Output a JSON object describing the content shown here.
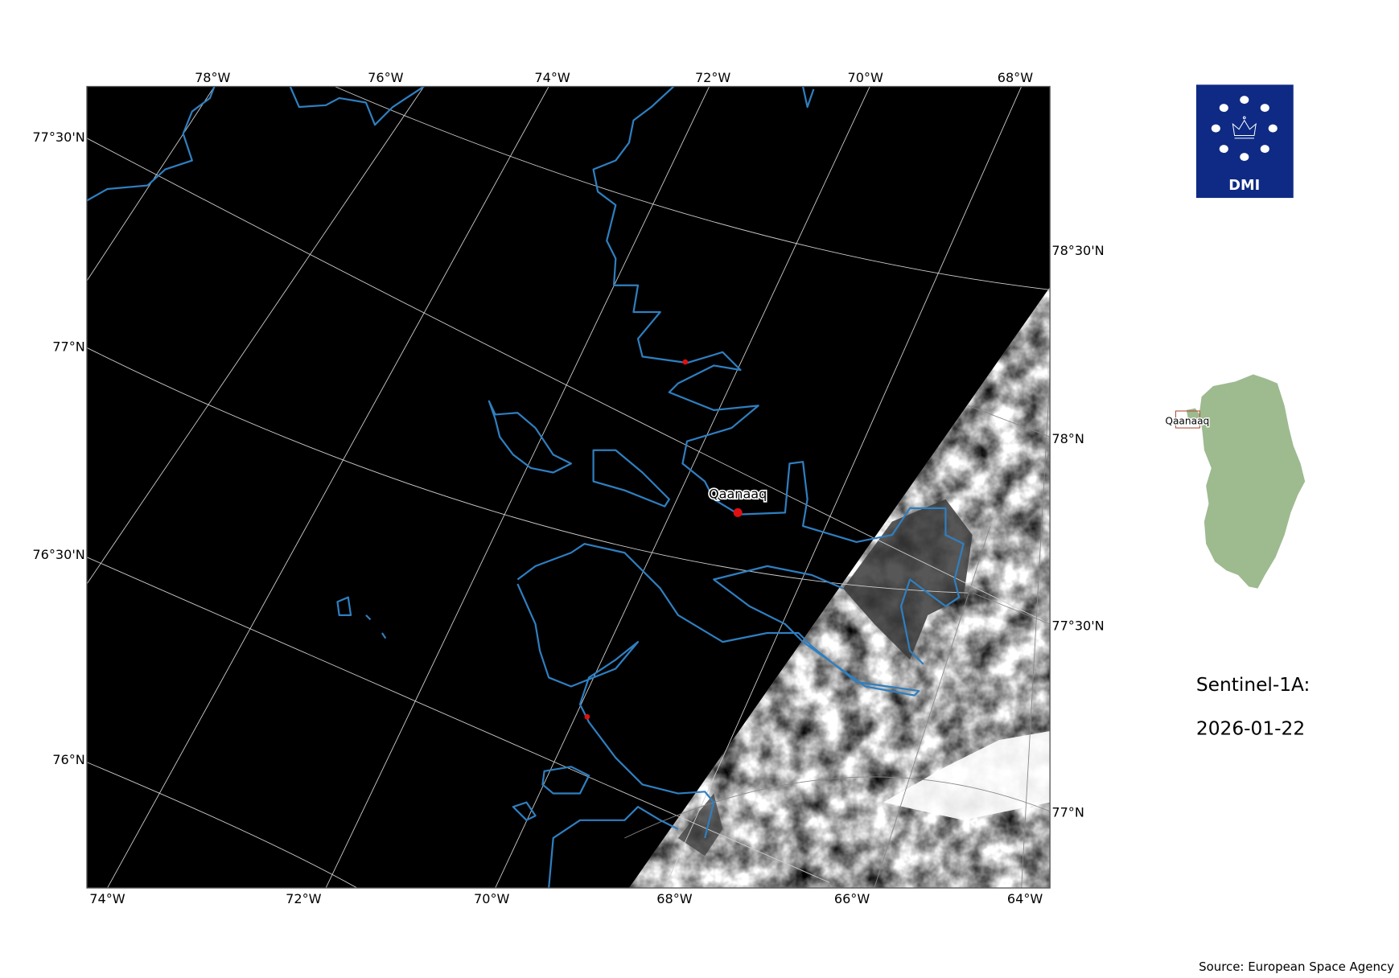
{
  "map": {
    "top_lon_labels": [
      "78°W",
      "76°W",
      "74°W",
      "72°W",
      "70°W",
      "68°W"
    ],
    "left_lat_labels": [
      "77°30'N",
      "77°N",
      "76°30'N",
      "76°N"
    ],
    "bottom_lon_labels": [
      "74°W",
      "72°W",
      "70°W",
      "68°W",
      "66°W",
      "64°W"
    ],
    "right_lat_labels": [
      "78°30'N",
      "78°N",
      "77°30'N",
      "77°N"
    ],
    "place_label": "Qaanaaq",
    "colors": {
      "coastline": "#2f7fc0",
      "marker": "#e01010",
      "background": "#000000"
    }
  },
  "logo": {
    "text": "DMI",
    "color": "#0e2a84"
  },
  "inset": {
    "place_label": "Qaanaaq",
    "land_color": "#9dbb8f",
    "box_color": "#b0523a"
  },
  "info": {
    "satellite": "Sentinel-1A:",
    "date": "2026-01-22"
  },
  "source": "Source: European Space Agency"
}
